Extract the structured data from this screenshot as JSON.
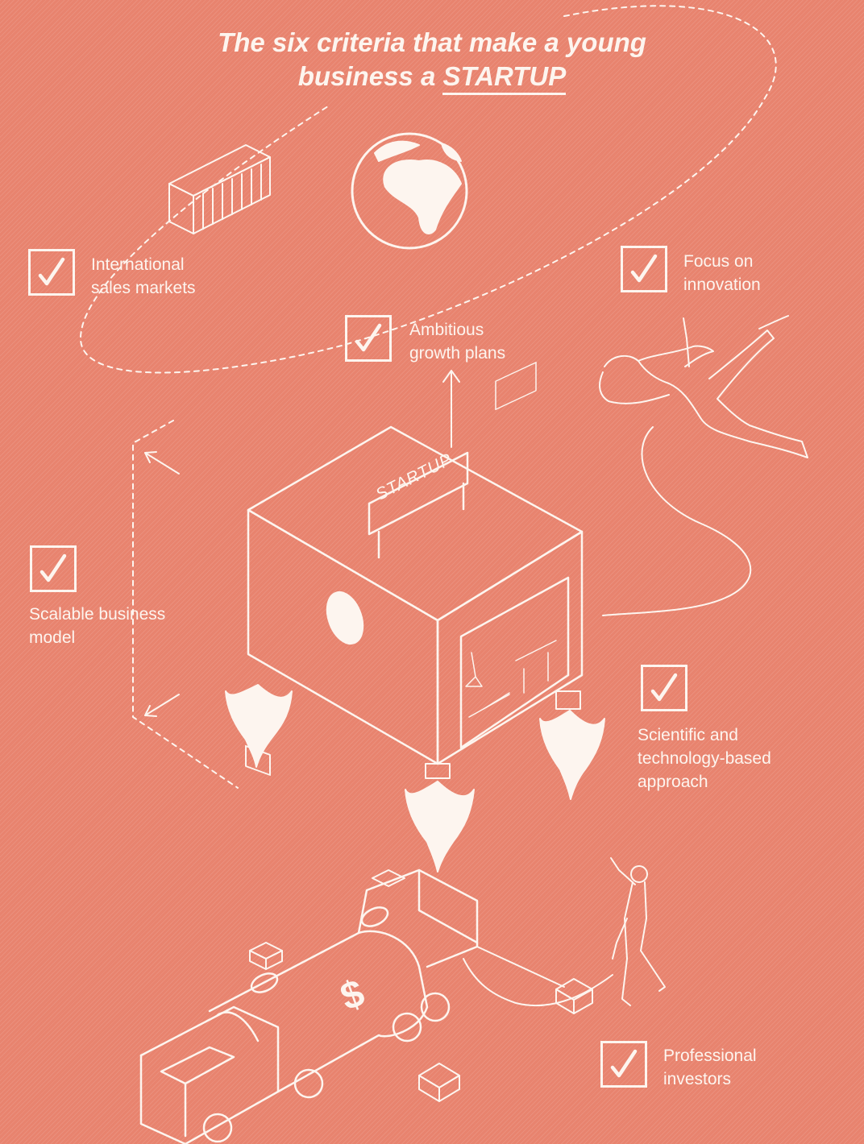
{
  "title": {
    "line1": "The six criteria that make a young",
    "line2_prefix": "business a",
    "line2_emph": "STARTUP"
  },
  "sign_text": "STARTUP",
  "criteria": [
    {
      "label1": "International",
      "label2": "sales markets",
      "checked": true
    },
    {
      "label1": "Focus on",
      "label2": "innovation",
      "checked": true
    },
    {
      "label1": "Ambitious",
      "label2": "growth plans",
      "checked": true
    },
    {
      "label1": "Scalable business",
      "label2": "model",
      "checked": true
    },
    {
      "label1": "Scientific and",
      "label2": "technology-based",
      "label3": "approach",
      "checked": true
    },
    {
      "label1": "Professional",
      "label2": "investors",
      "checked": true
    }
  ],
  "truck_symbol": "$",
  "colors": {
    "background": "#e8836e",
    "line": "#fdf5ef"
  }
}
